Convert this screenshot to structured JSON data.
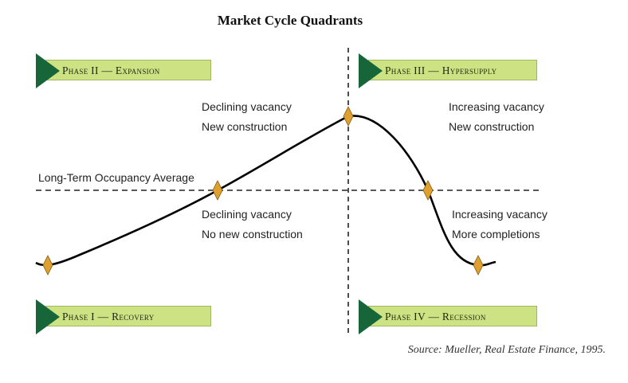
{
  "title": "Market Cycle Quadrants",
  "phases": {
    "expansion": "Phase II — Expansion",
    "hypersupply": "Phase III — Hypersupply",
    "recovery": "Phase I — Recovery",
    "recession": "Phase IV — Recession"
  },
  "quadrant_notes": {
    "upper_left": [
      "Declining vacancy",
      "New construction"
    ],
    "upper_right": [
      "Increasing vacancy",
      "New construction"
    ],
    "lower_left": [
      "Declining vacancy",
      "No new construction"
    ],
    "lower_right": [
      "Increasing vacancy",
      "More completions"
    ]
  },
  "average_label": "Long-Term Occupancy Average",
  "source": "Source: Mueller, Real Estate Finance, 1995.",
  "colors": {
    "banner": "#cde283",
    "arrow": "#17663a",
    "marker": "#e0a030",
    "curve": "#000000"
  }
}
